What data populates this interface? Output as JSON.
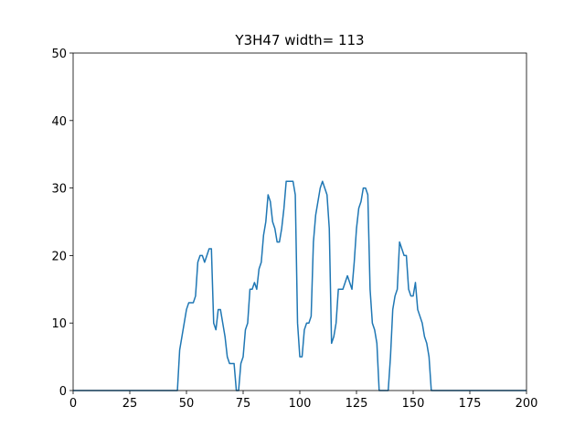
{
  "chart_data": {
    "type": "line",
    "title": "Y3H47 width= 113",
    "x": [
      0,
      1,
      2,
      3,
      4,
      5,
      6,
      7,
      8,
      9,
      10,
      11,
      12,
      13,
      14,
      15,
      16,
      17,
      18,
      19,
      20,
      21,
      22,
      23,
      24,
      25,
      26,
      27,
      28,
      29,
      30,
      31,
      32,
      33,
      34,
      35,
      36,
      37,
      38,
      39,
      40,
      41,
      42,
      43,
      44,
      45,
      46,
      47,
      48,
      49,
      50,
      51,
      52,
      53,
      54,
      55,
      56,
      57,
      58,
      59,
      60,
      61,
      62,
      63,
      64,
      65,
      66,
      67,
      68,
      69,
      70,
      71,
      72,
      73,
      74,
      75,
      76,
      77,
      78,
      79,
      80,
      81,
      82,
      83,
      84,
      85,
      86,
      87,
      88,
      89,
      90,
      91,
      92,
      93,
      94,
      95,
      96,
      97,
      98,
      99,
      100,
      101,
      102,
      103,
      104,
      105,
      106,
      107,
      108,
      109,
      110,
      111,
      112,
      113,
      114,
      115,
      116,
      117,
      118,
      119,
      120,
      121,
      122,
      123,
      124,
      125,
      126,
      127,
      128,
      129,
      130,
      131,
      132,
      133,
      134,
      135,
      136,
      137,
      138,
      139,
      140,
      141,
      142,
      143,
      144,
      145,
      146,
      147,
      148,
      149,
      150,
      151,
      152,
      153,
      154,
      155,
      156,
      157,
      158,
      159,
      160,
      161,
      162,
      163,
      164,
      165,
      166,
      167,
      168,
      169,
      170,
      171,
      172,
      173,
      174,
      175,
      176,
      177,
      178,
      179,
      180,
      181,
      182,
      183,
      184,
      185,
      186,
      187,
      188,
      189,
      190,
      191,
      192,
      193,
      194,
      195,
      196,
      197,
      198,
      199,
      200
    ],
    "series": [
      {
        "color": "#1f77b4",
        "values": [
          0,
          0,
          0,
          0,
          0,
          0,
          0,
          0,
          0,
          0,
          0,
          0,
          0,
          0,
          0,
          0,
          0,
          0,
          0,
          0,
          0,
          0,
          0,
          0,
          0,
          0,
          0,
          0,
          0,
          0,
          0,
          0,
          0,
          0,
          0,
          0,
          0,
          0,
          0,
          0,
          0,
          0,
          0,
          0,
          0,
          0,
          0,
          6,
          8,
          10,
          12,
          13,
          13,
          13,
          14,
          19,
          20,
          20,
          19,
          20,
          21,
          21,
          10,
          9,
          12,
          12,
          10,
          8,
          5,
          4,
          4,
          4,
          0,
          0,
          4,
          5,
          9,
          10,
          15,
          15,
          16,
          15,
          18,
          19,
          23,
          25,
          29,
          28,
          25,
          24,
          22,
          22,
          24,
          27,
          31,
          31,
          31,
          31,
          29,
          10,
          5,
          5,
          9,
          10,
          10,
          11,
          22,
          26,
          28,
          30,
          31,
          30,
          29,
          24,
          7,
          8,
          10,
          15,
          15,
          15,
          16,
          17,
          16,
          15,
          19,
          24,
          27,
          28,
          30,
          30,
          29,
          15,
          10,
          9,
          7,
          0,
          0,
          0,
          0,
          0,
          5,
          12,
          14,
          15,
          22,
          21,
          20,
          20,
          15,
          14,
          14,
          16,
          12,
          11,
          10,
          8,
          7,
          5,
          0,
          0,
          0,
          0,
          0,
          0,
          0,
          0,
          0,
          0,
          0,
          0,
          0,
          0,
          0,
          0,
          0,
          0,
          0,
          0,
          0,
          0,
          0,
          0,
          0,
          0,
          0,
          0,
          0,
          0,
          0,
          0,
          0,
          0,
          0,
          0,
          0,
          0,
          0,
          0,
          0,
          0,
          0
        ]
      }
    ],
    "xlim": [
      0,
      200
    ],
    "xticks": [
      0,
      25,
      50,
      75,
      100,
      125,
      150,
      175,
      200
    ],
    "ylim": [
      0,
      50
    ],
    "yticks": [
      0,
      10,
      20,
      30,
      40,
      50
    ],
    "grid": false
  }
}
